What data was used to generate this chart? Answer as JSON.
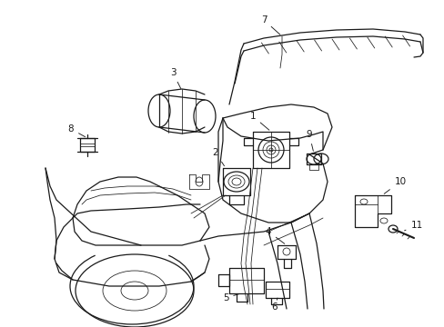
{
  "bg_color": "#ffffff",
  "line_color": "#1a1a1a",
  "figsize": [
    4.89,
    3.6
  ],
  "dpi": 100,
  "lw_main": 0.9,
  "lw_thin": 0.55,
  "label_fontsize": 7.5
}
